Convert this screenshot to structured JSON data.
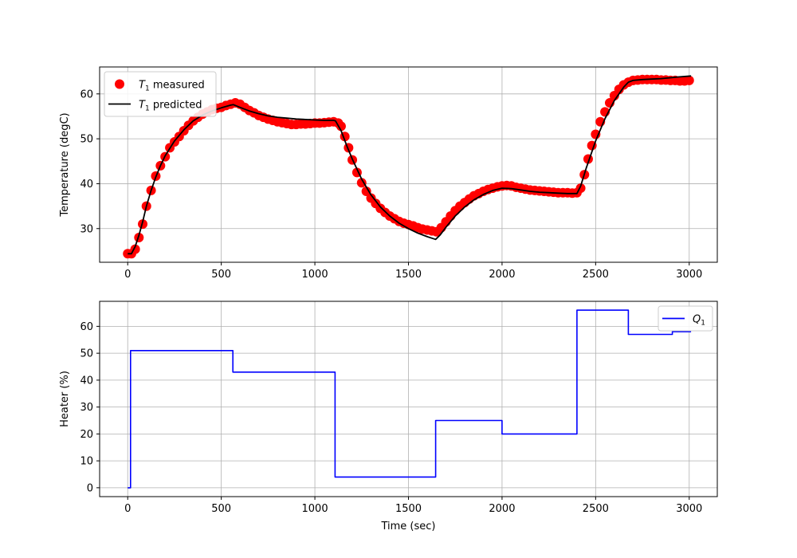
{
  "chart_data": [
    {
      "type": "line",
      "xlabel": "",
      "ylabel": "Temperature (degC)",
      "xlim": [
        -150,
        3150
      ],
      "ylim": [
        22.5,
        66
      ],
      "x_ticks": [
        0,
        500,
        1000,
        1500,
        2000,
        2500,
        3000
      ],
      "y_ticks": [
        30,
        40,
        50,
        60
      ],
      "grid": true,
      "legend": "top-left",
      "series": [
        {
          "name_main": "T",
          "name_sub": "1",
          "name_rest": " measured",
          "style": "scatter",
          "color": "#ff0000",
          "points": [
            [
              0,
              24.4
            ],
            [
              20,
              24.4
            ],
            [
              40,
              25.4
            ],
            [
              60,
              28
            ],
            [
              80,
              31
            ],
            [
              100,
              35
            ],
            [
              125,
              38.5
            ],
            [
              150,
              41.7
            ],
            [
              175,
              44
            ],
            [
              200,
              46
            ],
            [
              225,
              48
            ],
            [
              250,
              49.3
            ],
            [
              275,
              50.5
            ],
            [
              300,
              51.8
            ],
            [
              325,
              53
            ],
            [
              350,
              54
            ],
            [
              375,
              54.8
            ],
            [
              400,
              55.5
            ],
            [
              425,
              56
            ],
            [
              450,
              56.5
            ],
            [
              475,
              56.8
            ],
            [
              500,
              57
            ],
            [
              525,
              57.4
            ],
            [
              550,
              57.7
            ],
            [
              575,
              58
            ],
            [
              600,
              57.7
            ],
            [
              625,
              57
            ],
            [
              650,
              56.3
            ],
            [
              675,
              55.8
            ],
            [
              700,
              55.2
            ],
            [
              725,
              54.8
            ],
            [
              750,
              54.4
            ],
            [
              775,
              54.1
            ],
            [
              800,
              53.8
            ],
            [
              825,
              53.6
            ],
            [
              850,
              53.4
            ],
            [
              875,
              53.2
            ],
            [
              900,
              53.2
            ],
            [
              925,
              53.3
            ],
            [
              950,
              53.3
            ],
            [
              975,
              53.4
            ],
            [
              1000,
              53.5
            ],
            [
              1025,
              53.5
            ],
            [
              1050,
              53.6
            ],
            [
              1075,
              53.7
            ],
            [
              1100,
              53.8
            ],
            [
              1125,
              53.5
            ],
            [
              1140,
              52.8
            ],
            [
              1160,
              50.5
            ],
            [
              1180,
              48
            ],
            [
              1200,
              45.3
            ],
            [
              1225,
              42.5
            ],
            [
              1250,
              40.2
            ],
            [
              1275,
              38.3
            ],
            [
              1300,
              36.8
            ],
            [
              1325,
              35.6
            ],
            [
              1350,
              34.5
            ],
            [
              1375,
              33.6
            ],
            [
              1400,
              32.8
            ],
            [
              1425,
              32.2
            ],
            [
              1450,
              31.6
            ],
            [
              1475,
              31.2
            ],
            [
              1500,
              30.9
            ],
            [
              1525,
              30.6
            ],
            [
              1550,
              30.2
            ],
            [
              1575,
              29.9
            ],
            [
              1600,
              29.7
            ],
            [
              1625,
              29.5
            ],
            [
              1650,
              29.3
            ],
            [
              1675,
              30.2
            ],
            [
              1700,
              31.5
            ],
            [
              1725,
              32.8
            ],
            [
              1750,
              34
            ],
            [
              1775,
              35
            ],
            [
              1800,
              35.8
            ],
            [
              1825,
              36.6
            ],
            [
              1850,
              37.3
            ],
            [
              1875,
              37.8
            ],
            [
              1900,
              38.3
            ],
            [
              1925,
              38.7
            ],
            [
              1950,
              39
            ],
            [
              1975,
              39.3
            ],
            [
              2000,
              39.5
            ],
            [
              2025,
              39.6
            ],
            [
              2050,
              39.5
            ],
            [
              2075,
              39.2
            ],
            [
              2100,
              39
            ],
            [
              2125,
              38.8
            ],
            [
              2150,
              38.6
            ],
            [
              2175,
              38.5
            ],
            [
              2200,
              38.4
            ],
            [
              2225,
              38.3
            ],
            [
              2250,
              38.2
            ],
            [
              2275,
              38.1
            ],
            [
              2300,
              38
            ],
            [
              2325,
              38
            ],
            [
              2350,
              38
            ],
            [
              2375,
              37.9
            ],
            [
              2400,
              38
            ],
            [
              2420,
              39
            ],
            [
              2440,
              42
            ],
            [
              2460,
              45.5
            ],
            [
              2480,
              48.5
            ],
            [
              2500,
              51
            ],
            [
              2525,
              53.8
            ],
            [
              2550,
              56
            ],
            [
              2575,
              58
            ],
            [
              2600,
              59.6
            ],
            [
              2625,
              61
            ],
            [
              2650,
              62
            ],
            [
              2675,
              62.6
            ],
            [
              2700,
              63
            ],
            [
              2725,
              63.1
            ],
            [
              2750,
              63.2
            ],
            [
              2775,
              63.2
            ],
            [
              2800,
              63.2
            ],
            [
              2825,
              63.2
            ],
            [
              2850,
              63.1
            ],
            [
              2875,
              63.1
            ],
            [
              2900,
              63
            ],
            [
              2925,
              63
            ],
            [
              2950,
              62.9
            ],
            [
              2975,
              62.9
            ],
            [
              3000,
              63
            ]
          ]
        },
        {
          "name_main": "T",
          "name_sub": "1",
          "name_rest": " predicted",
          "style": "line",
          "color": "#000000",
          "points": [
            [
              0,
              24.4
            ],
            [
              20,
              24.4
            ],
            [
              40,
              26
            ],
            [
              60,
              28.5
            ],
            [
              80,
              31.5
            ],
            [
              100,
              35
            ],
            [
              125,
              38.5
            ],
            [
              150,
              41.5
            ],
            [
              175,
              44
            ],
            [
              200,
              46.2
            ],
            [
              250,
              49.5
            ],
            [
              300,
              52
            ],
            [
              350,
              54
            ],
            [
              400,
              55.3
            ],
            [
              450,
              56.2
            ],
            [
              500,
              56.9
            ],
            [
              550,
              57.5
            ],
            [
              565,
              57.6
            ],
            [
              600,
              57
            ],
            [
              650,
              56.2
            ],
            [
              700,
              55.6
            ],
            [
              750,
              55.1
            ],
            [
              800,
              54.8
            ],
            [
              850,
              54.6
            ],
            [
              900,
              54.4
            ],
            [
              950,
              54.3
            ],
            [
              1000,
              54.2
            ],
            [
              1050,
              54.1
            ],
            [
              1100,
              54.1
            ],
            [
              1110,
              54
            ],
            [
              1140,
              51.8
            ],
            [
              1170,
              48.5
            ],
            [
              1200,
              45.5
            ],
            [
              1250,
              41
            ],
            [
              1300,
              37.5
            ],
            [
              1350,
              34.8
            ],
            [
              1400,
              32.8
            ],
            [
              1450,
              31.2
            ],
            [
              1500,
              30
            ],
            [
              1550,
              29
            ],
            [
              1600,
              28.2
            ],
            [
              1645,
              27.6
            ],
            [
              1670,
              28.6
            ],
            [
              1700,
              30.3
            ],
            [
              1750,
              32.8
            ],
            [
              1800,
              34.8
            ],
            [
              1850,
              36.4
            ],
            [
              1900,
              37.6
            ],
            [
              1950,
              38.5
            ],
            [
              2000,
              39
            ],
            [
              2050,
              38.9
            ],
            [
              2100,
              38.6
            ],
            [
              2150,
              38.3
            ],
            [
              2200,
              38.1
            ],
            [
              2250,
              38
            ],
            [
              2300,
              37.9
            ],
            [
              2350,
              37.8
            ],
            [
              2400,
              37.8
            ],
            [
              2420,
              39.5
            ],
            [
              2450,
              43.5
            ],
            [
              2500,
              49.5
            ],
            [
              2550,
              54.5
            ],
            [
              2600,
              58.5
            ],
            [
              2650,
              61.5
            ],
            [
              2675,
              62.6
            ],
            [
              2700,
              63
            ],
            [
              2750,
              63.2
            ],
            [
              2800,
              63.3
            ],
            [
              2850,
              63.4
            ],
            [
              2900,
              63.6
            ],
            [
              2950,
              63.8
            ],
            [
              3010,
              64
            ]
          ]
        }
      ]
    },
    {
      "type": "line",
      "xlabel": "Time (sec)",
      "ylabel": "Heater (%)",
      "xlim": [
        -150,
        3150
      ],
      "ylim": [
        -3.3,
        69.3
      ],
      "x_ticks": [
        0,
        500,
        1000,
        1500,
        2000,
        2500,
        3000
      ],
      "y_ticks": [
        0,
        10,
        20,
        30,
        40,
        50,
        60
      ],
      "grid": true,
      "legend": "top-right",
      "series": [
        {
          "name_main": "Q",
          "name_sub": "1",
          "name_rest": "",
          "style": "step",
          "color": "#0000ff",
          "points": [
            [
              0,
              0
            ],
            [
              15,
              0
            ],
            [
              15,
              51
            ],
            [
              562,
              51
            ],
            [
              562,
              43
            ],
            [
              1108,
              43
            ],
            [
              1108,
              4
            ],
            [
              1645,
              4
            ],
            [
              1645,
              25
            ],
            [
              2000,
              25
            ],
            [
              2000,
              20
            ],
            [
              2400,
              20
            ],
            [
              2400,
              66
            ],
            [
              2675,
              66
            ],
            [
              2675,
              57
            ],
            [
              2910,
              57
            ],
            [
              2910,
              58
            ],
            [
              3010,
              58
            ]
          ]
        }
      ]
    }
  ]
}
